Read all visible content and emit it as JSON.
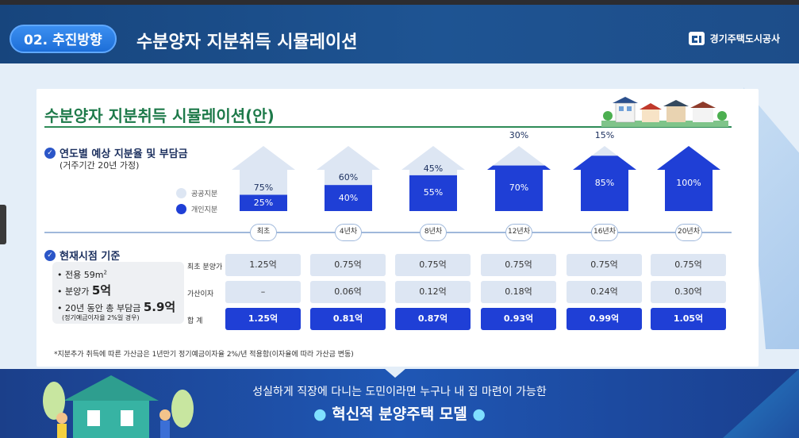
{
  "header": {
    "section_label": "02. 추진방향",
    "title": "수분양자 지분취득 시뮬레이션",
    "logo_text": "경기주택도시공사"
  },
  "card": {
    "title": "수분양자 지분취득 시뮬레이션(안)",
    "section1": {
      "heading": "연도별 예상 지분율 및 부담금",
      "sub": "(거주기간 20년 가정)"
    },
    "legend": [
      {
        "label": "공공지분",
        "color": "#dde6f3"
      },
      {
        "label": "개인지분",
        "color": "#1f3fd6"
      }
    ],
    "houses": [
      {
        "public": "75%",
        "private": "25%",
        "private_share": 0.25
      },
      {
        "public": "60%",
        "private": "40%",
        "private_share": 0.4
      },
      {
        "public": "45%",
        "private": "55%",
        "private_share": 0.55
      },
      {
        "public": "30%",
        "private": "70%",
        "private_share": 0.7
      },
      {
        "public": "15%",
        "private": "85%",
        "private_share": 0.85
      },
      {
        "public": "",
        "private": "100%",
        "private_share": 1.0
      }
    ],
    "timeline": [
      "최초",
      "4년차",
      "8년차",
      "12년차",
      "16년차",
      "20년차"
    ],
    "section2": {
      "heading": "현재시점 기준",
      "items": [
        {
          "text": "• 전용 59m",
          "sup": "2"
        },
        {
          "text": "• 분양가 ",
          "big": "5억"
        },
        {
          "text": "• 20년 동안 총 부담금 ",
          "big": "5.9억"
        }
      ],
      "note": "(정기예금이자율 2%일 경우)"
    },
    "row_labels": [
      "최초 분양가",
      "가산이자",
      "합 계"
    ],
    "table": {
      "initial_price": [
        "1.25억",
        "0.75억",
        "0.75억",
        "0.75억",
        "0.75억",
        "0.75억"
      ],
      "added_interest": [
        "–",
        "0.06억",
        "0.12억",
        "0.18억",
        "0.24억",
        "0.30억"
      ],
      "total": [
        "1.25억",
        "0.81억",
        "0.87억",
        "0.93억",
        "0.99억",
        "1.05억"
      ]
    },
    "footnote": "*지분추가 취득에 따른 가산금은 1년만기 정기예금이자율 2%/년 적용함(이자율에 따라 가산금 변동)"
  },
  "banner": {
    "line1": "성실하게 직장에 다니는 도민이라면 누구나 내 집 마련이 가능한",
    "line2": "혁신적 분양주택 모델"
  }
}
